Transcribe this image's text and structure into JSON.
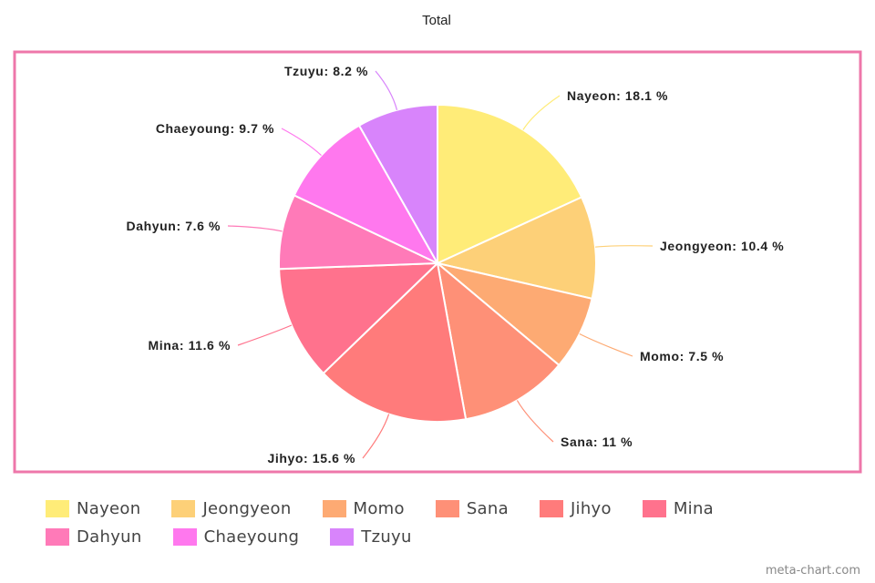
{
  "chart_data": {
    "type": "pie",
    "title": "Total",
    "slices": [
      {
        "name": "Nayeon",
        "value": 18.1,
        "label": "Nayeon: 18.1 %",
        "color": "#ffec78"
      },
      {
        "name": "Jeongyeon",
        "value": 10.4,
        "label": "Jeongyeon: 10.4 %",
        "color": "#fdd078"
      },
      {
        "name": "Momo",
        "value": 7.5,
        "label": "Momo: 7.5 %",
        "color": "#fdaa73"
      },
      {
        "name": "Sana",
        "value": 11,
        "label": "Sana: 11 %",
        "color": "#fe9077"
      },
      {
        "name": "Jihyo",
        "value": 15.6,
        "label": "Jihyo: 15.6 %",
        "color": "#ff7b7b"
      },
      {
        "name": "Mina",
        "value": 11.6,
        "label": "Mina: 11.6 %",
        "color": "#ff728d"
      },
      {
        "name": "Dahyun",
        "value": 7.6,
        "label": "Dahyun: 7.6 %",
        "color": "#ff7ab8"
      },
      {
        "name": "Chaeyoung",
        "value": 9.7,
        "label": "Chaeyoung: 9.7 %",
        "color": "#ff78ee"
      },
      {
        "name": "Tzuyu",
        "value": 8.2,
        "label": "Tzuyu: 8.2 %",
        "color": "#d884fb"
      }
    ],
    "legend_position": "bottom",
    "border_color": "#ee77aa"
  },
  "watermark": "meta-chart.com"
}
